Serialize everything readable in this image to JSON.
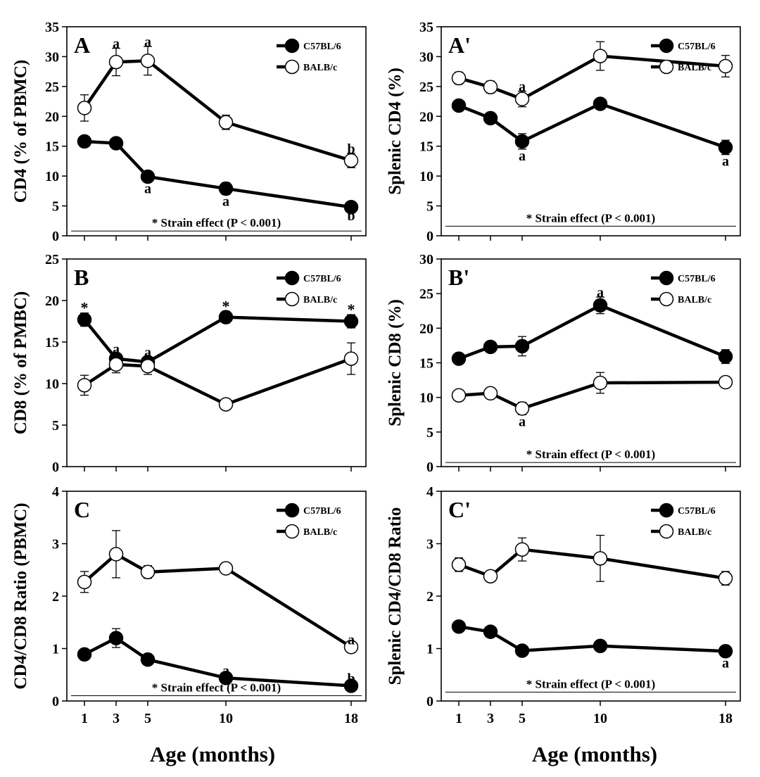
{
  "figure": {
    "xlabel_left": "Age (months)",
    "xlabel_right": "Age (months)"
  },
  "colors": {
    "ink": "#000000",
    "open": "#ffffff"
  },
  "chart_data": [
    {
      "id": "A",
      "panel_label": "A",
      "type": "line",
      "ylabel": "CD4 (% of PBMC)",
      "ylim": [
        0,
        35
      ],
      "yticks": [
        0,
        5,
        10,
        15,
        20,
        25,
        30,
        35
      ],
      "x": [
        1,
        3,
        5,
        10,
        18
      ],
      "xticks": [
        1,
        3,
        5,
        10,
        18
      ],
      "show_xticklabels": false,
      "series": [
        {
          "name": "C57BL/6",
          "marker": "filled",
          "values": [
            15.8,
            15.5,
            9.9,
            7.9,
            4.8
          ],
          "errors": [
            0.6,
            0.9,
            0.9,
            1.0,
            0.3
          ]
        },
        {
          "name": "BALB/c",
          "marker": "open",
          "values": [
            21.4,
            29.1,
            29.3,
            19.0,
            12.6
          ],
          "errors": [
            2.2,
            2.3,
            2.4,
            1.2,
            1.2
          ]
        }
      ],
      "annotations": [
        {
          "text": "a",
          "x": 3,
          "y": 31.4,
          "pos": "above"
        },
        {
          "text": "a",
          "x": 5,
          "y": 31.7,
          "pos": "above"
        },
        {
          "text": "b",
          "x": 18,
          "y": 13.8,
          "pos": "above"
        },
        {
          "text": "a",
          "x": 5,
          "y": 9.0,
          "pos": "below"
        },
        {
          "text": "a",
          "x": 10,
          "y": 6.9,
          "pos": "below"
        },
        {
          "text": "b",
          "x": 18,
          "y": 4.5,
          "pos": "below"
        }
      ],
      "strain_note": "* Strain effect (P < 0.001)",
      "strain_y": 0.8
    },
    {
      "id": "Ap",
      "panel_label": "A'",
      "type": "line",
      "ylabel": "Splenic CD4 (%)",
      "ylim": [
        0,
        35
      ],
      "yticks": [
        0,
        5,
        10,
        15,
        20,
        25,
        30,
        35
      ],
      "x": [
        1,
        3,
        5,
        10,
        18
      ],
      "xticks": [
        1,
        3,
        5,
        10,
        18
      ],
      "show_xticklabels": false,
      "series": [
        {
          "name": "C57BL/6",
          "marker": "filled",
          "values": [
            21.8,
            19.7,
            15.8,
            22.1,
            14.8
          ],
          "errors": [
            0.5,
            0.6,
            1.3,
            0.7,
            1.2
          ]
        },
        {
          "name": "BALB/c",
          "marker": "open",
          "values": [
            26.4,
            24.9,
            22.9,
            30.1,
            28.4
          ],
          "errors": [
            1.0,
            1.0,
            1.3,
            2.4,
            1.8
          ]
        }
      ],
      "annotations": [
        {
          "text": "a",
          "x": 5,
          "y": 24.2,
          "pos": "above"
        },
        {
          "text": "a",
          "x": 5,
          "y": 14.5,
          "pos": "below"
        },
        {
          "text": "a",
          "x": 18,
          "y": 13.6,
          "pos": "below"
        }
      ],
      "strain_note": "* Strain effect (P < 0.001)",
      "strain_y": 1.6
    },
    {
      "id": "B",
      "panel_label": "B",
      "type": "line",
      "ylabel": "CD8 (% of PMBC)",
      "ylim": [
        0,
        25
      ],
      "yticks": [
        0,
        5,
        10,
        15,
        20,
        25
      ],
      "x": [
        1,
        3,
        5,
        10,
        18
      ],
      "xticks": [
        1,
        3,
        5,
        10,
        18
      ],
      "show_xticklabels": false,
      "series": [
        {
          "name": "C57BL/6",
          "marker": "filled",
          "values": [
            17.7,
            13.0,
            12.6,
            18.0,
            17.5
          ],
          "errors": [
            0.8,
            0.6,
            0.6,
            0.7,
            0.8
          ]
        },
        {
          "name": "BALB/c",
          "marker": "open",
          "values": [
            9.8,
            12.3,
            12.1,
            7.5,
            13.0
          ],
          "errors": [
            1.2,
            1.0,
            1.0,
            0.3,
            1.9
          ]
        }
      ],
      "annotations": [
        {
          "text": "*",
          "x": 1,
          "y": 18.5,
          "pos": "above"
        },
        {
          "text": "a",
          "x": 3,
          "y": 13.6,
          "pos": "above"
        },
        {
          "text": "a",
          "x": 5,
          "y": 13.2,
          "pos": "above"
        },
        {
          "text": "*",
          "x": 10,
          "y": 18.7,
          "pos": "above"
        },
        {
          "text": "*",
          "x": 18,
          "y": 18.3,
          "pos": "above"
        }
      ],
      "strain_note": "",
      "strain_y": 0
    },
    {
      "id": "Bp",
      "panel_label": "B'",
      "type": "line",
      "ylabel": "Splenic CD8 (%)",
      "ylim": [
        0,
        30
      ],
      "yticks": [
        0,
        5,
        10,
        15,
        20,
        25,
        30
      ],
      "x": [
        1,
        3,
        5,
        10,
        18
      ],
      "xticks": [
        1,
        3,
        5,
        10,
        18
      ],
      "show_xticklabels": false,
      "series": [
        {
          "name": "C57BL/6",
          "marker": "filled",
          "values": [
            15.6,
            17.3,
            17.4,
            23.3,
            15.9
          ],
          "errors": [
            0.5,
            0.7,
            1.4,
            1.2,
            1.0
          ]
        },
        {
          "name": "BALB/c",
          "marker": "open",
          "values": [
            10.3,
            10.6,
            8.4,
            12.1,
            12.2
          ],
          "errors": [
            0.3,
            0.5,
            0.9,
            1.5,
            0.3
          ]
        }
      ],
      "annotations": [
        {
          "text": "a",
          "x": 10,
          "y": 24.5,
          "pos": "above"
        },
        {
          "text": "a",
          "x": 5,
          "y": 7.5,
          "pos": "below"
        }
      ],
      "strain_note": "* Strain effect (P < 0.001)",
      "strain_y": 0.6
    },
    {
      "id": "C",
      "panel_label": "C",
      "type": "line",
      "ylabel": "CD4/CD8 Ratio (PBMC)",
      "ylim": [
        0,
        4
      ],
      "yticks": [
        0,
        1,
        2,
        3,
        4
      ],
      "x": [
        1,
        3,
        5,
        10,
        18
      ],
      "xticks": [
        1,
        3,
        5,
        10,
        18
      ],
      "show_xticklabels": true,
      "series": [
        {
          "name": "C57BL/6",
          "marker": "filled",
          "values": [
            0.89,
            1.2,
            0.79,
            0.44,
            0.29
          ],
          "errors": [
            0.05,
            0.18,
            0.06,
            0.05,
            0.03
          ]
        },
        {
          "name": "BALB/c",
          "marker": "open",
          "values": [
            2.27,
            2.8,
            2.46,
            2.53,
            1.03
          ],
          "errors": [
            0.2,
            0.45,
            0.12,
            0.05,
            0.05
          ]
        }
      ],
      "annotations": [
        {
          "text": "a",
          "x": 18,
          "y": 1.08,
          "pos": "above"
        },
        {
          "text": "a",
          "x": 10,
          "y": 0.49,
          "pos": "above"
        },
        {
          "text": "b",
          "x": 18,
          "y": 0.34,
          "pos": "above"
        }
      ],
      "strain_note": "* Strain effect (P < 0.001)",
      "strain_y": 0.1
    },
    {
      "id": "Cp",
      "panel_label": "C'",
      "type": "line",
      "ylabel": "Splenic CD4/CD8 Ratio",
      "ylim": [
        0,
        4
      ],
      "yticks": [
        0,
        1,
        2,
        3,
        4
      ],
      "x": [
        1,
        3,
        5,
        10,
        18
      ],
      "xticks": [
        1,
        3,
        5,
        10,
        18
      ],
      "show_xticklabels": true,
      "series": [
        {
          "name": "C57BL/6",
          "marker": "filled",
          "values": [
            1.42,
            1.32,
            0.96,
            1.05,
            0.95
          ],
          "errors": [
            0.04,
            0.06,
            0.06,
            0.08,
            0.05
          ]
        },
        {
          "name": "BALB/c",
          "marker": "open",
          "values": [
            2.6,
            2.38,
            2.89,
            2.72,
            2.34
          ],
          "errors": [
            0.13,
            0.06,
            0.22,
            0.44,
            0.13
          ]
        }
      ],
      "annotations": [
        {
          "text": "a",
          "x": 18,
          "y": 0.85,
          "pos": "below"
        }
      ],
      "strain_note": "* Strain effect (P < 0.001)",
      "strain_y": 0.17
    }
  ]
}
